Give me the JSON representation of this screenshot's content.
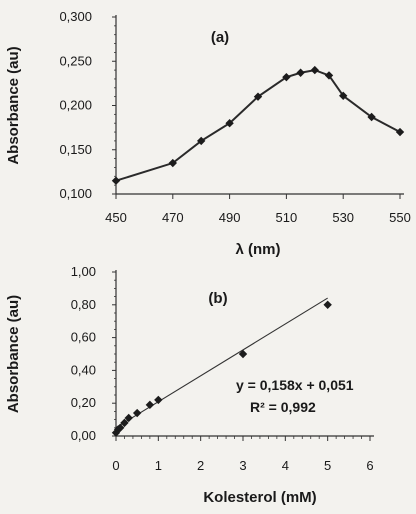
{
  "chart_data": [
    {
      "panel": "(a)",
      "type": "line",
      "xlabel": "λ (nm)",
      "ylabel": "Absorbance (au)",
      "xlim": [
        450,
        550
      ],
      "ylim": [
        0.1,
        0.3
      ],
      "x_ticks": [
        "450",
        "470",
        "490",
        "510",
        "530",
        "550"
      ],
      "y_ticks": [
        "0,100",
        "0,150",
        "0,200",
        "0,250",
        "0,300"
      ],
      "grid": false,
      "series": [
        {
          "x": [
            450,
            470,
            480,
            490,
            500,
            510,
            515,
            520,
            525,
            530,
            540,
            550
          ],
          "y": [
            0.115,
            0.135,
            0.16,
            0.18,
            0.21,
            0.232,
            0.237,
            0.24,
            0.234,
            0.211,
            0.187,
            0.17
          ]
        }
      ]
    },
    {
      "panel": "(b)",
      "type": "scatter",
      "xlabel": "Kolesterol (mM)",
      "ylabel": "Absorbance (au)",
      "xlim": [
        0,
        6
      ],
      "ylim": [
        0,
        1
      ],
      "x_ticks": [
        "0",
        "1",
        "2",
        "3",
        "4",
        "5",
        "6"
      ],
      "y_ticks": [
        "0,00",
        "0,20",
        "0,40",
        "0,60",
        "0,80",
        "1,00"
      ],
      "grid": false,
      "series": [
        {
          "x": [
            0,
            0.05,
            0.1,
            0.2,
            0.3,
            0.5,
            0.8,
            1.0,
            3.0,
            5.0
          ],
          "y": [
            0.02,
            0.04,
            0.05,
            0.08,
            0.11,
            0.14,
            0.19,
            0.22,
            0.5,
            0.8
          ]
        }
      ],
      "trendline": {
        "slope": 0.158,
        "intercept": 0.051,
        "x_range": [
          0,
          5
        ]
      },
      "annotations": [
        "y = 0,158x + 0,051",
        "R² = 0,992"
      ]
    }
  ]
}
